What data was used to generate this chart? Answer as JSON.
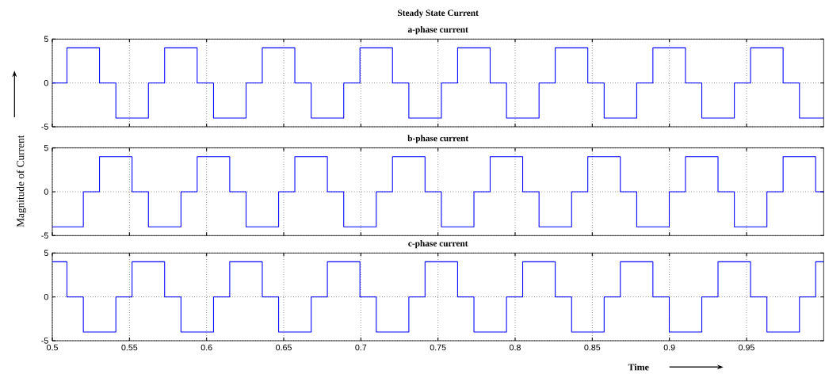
{
  "chart_data": [
    {
      "type": "step",
      "title": "Steady State Current",
      "subtitle": "a-phase current",
      "color": "#0000ff",
      "grid": true,
      "tick_labels": "y",
      "x": [
        0.5,
        0.5095,
        0.5306,
        0.5412,
        0.5623,
        0.5728,
        0.5939,
        0.6045,
        0.6256,
        0.6361,
        0.6572,
        0.6678,
        0.6889,
        0.6994,
        0.7205,
        0.7311,
        0.7522,
        0.7627,
        0.7838,
        0.7944,
        0.8155,
        0.826,
        0.8471,
        0.8577,
        0.8788,
        0.8893,
        0.9104,
        0.921,
        0.9421,
        0.9526,
        0.9737,
        0.9843,
        1.0
      ],
      "values": [
        0,
        4,
        0,
        -4,
        0,
        4,
        0,
        -4,
        0,
        4,
        0,
        -4,
        0,
        4,
        0,
        -4,
        0,
        4,
        0,
        -4,
        0,
        4,
        0,
        -4,
        0,
        4,
        0,
        -4,
        0,
        4,
        0,
        -4,
        -4
      ],
      "xlim": [
        0.5,
        1.0
      ],
      "ylim": [
        -5,
        5
      ],
      "xticks": [
        0.5,
        0.55,
        0.6,
        0.65,
        0.7,
        0.75,
        0.8,
        0.85,
        0.9,
        0.95
      ],
      "yticks": [
        -5,
        0,
        5
      ]
    },
    {
      "type": "step",
      "title": "b-phase current",
      "ylabel": "Magnitude of Current",
      "color": "#0000ff",
      "grid": true,
      "tick_labels": "y",
      "x": [
        0.5,
        0.5201,
        0.5306,
        0.5517,
        0.5623,
        0.5834,
        0.5939,
        0.615,
        0.6256,
        0.6467,
        0.6572,
        0.6783,
        0.6889,
        0.71,
        0.7205,
        0.7416,
        0.7522,
        0.7733,
        0.7838,
        0.8049,
        0.8155,
        0.8366,
        0.8471,
        0.8682,
        0.8788,
        0.8999,
        0.9104,
        0.9315,
        0.9421,
        0.9632,
        0.9737,
        0.9948,
        1.0
      ],
      "values": [
        -4,
        0,
        4,
        0,
        -4,
        0,
        4,
        0,
        -4,
        0,
        4,
        0,
        -4,
        0,
        4,
        0,
        -4,
        0,
        4,
        0,
        -4,
        0,
        4,
        0,
        -4,
        0,
        4,
        0,
        -4,
        0,
        4,
        0,
        0
      ],
      "xlim": [
        0.5,
        1.0
      ],
      "ylim": [
        -5,
        5
      ],
      "xticks": [
        0.5,
        0.55,
        0.6,
        0.65,
        0.7,
        0.75,
        0.8,
        0.85,
        0.9,
        0.95
      ],
      "yticks": [
        -5,
        0,
        5
      ]
    },
    {
      "type": "step",
      "title": "c-phase current",
      "xlabel": "Time",
      "color": "#0000ff",
      "grid": true,
      "x": [
        0.5,
        0.5095,
        0.5201,
        0.5412,
        0.5517,
        0.5728,
        0.5834,
        0.6045,
        0.615,
        0.6361,
        0.6467,
        0.6678,
        0.6783,
        0.6994,
        0.71,
        0.7311,
        0.7416,
        0.7627,
        0.7733,
        0.7944,
        0.8049,
        0.826,
        0.8366,
        0.8577,
        0.8682,
        0.8893,
        0.8999,
        0.921,
        0.9315,
        0.9526,
        0.9632,
        0.9843,
        0.9948,
        1.0
      ],
      "values": [
        4,
        0,
        -4,
        0,
        4,
        0,
        -4,
        0,
        4,
        0,
        -4,
        0,
        4,
        0,
        -4,
        0,
        4,
        0,
        -4,
        0,
        4,
        0,
        -4,
        0,
        4,
        0,
        -4,
        0,
        4,
        0,
        -4,
        0,
        4,
        4
      ],
      "xlim": [
        0.5,
        1.0
      ],
      "ylim": [
        -5,
        5
      ],
      "xticks": [
        0.5,
        0.55,
        0.6,
        0.65,
        0.7,
        0.75,
        0.8,
        0.85,
        0.9,
        0.95
      ],
      "yticks": [
        -5,
        0,
        5
      ]
    }
  ]
}
